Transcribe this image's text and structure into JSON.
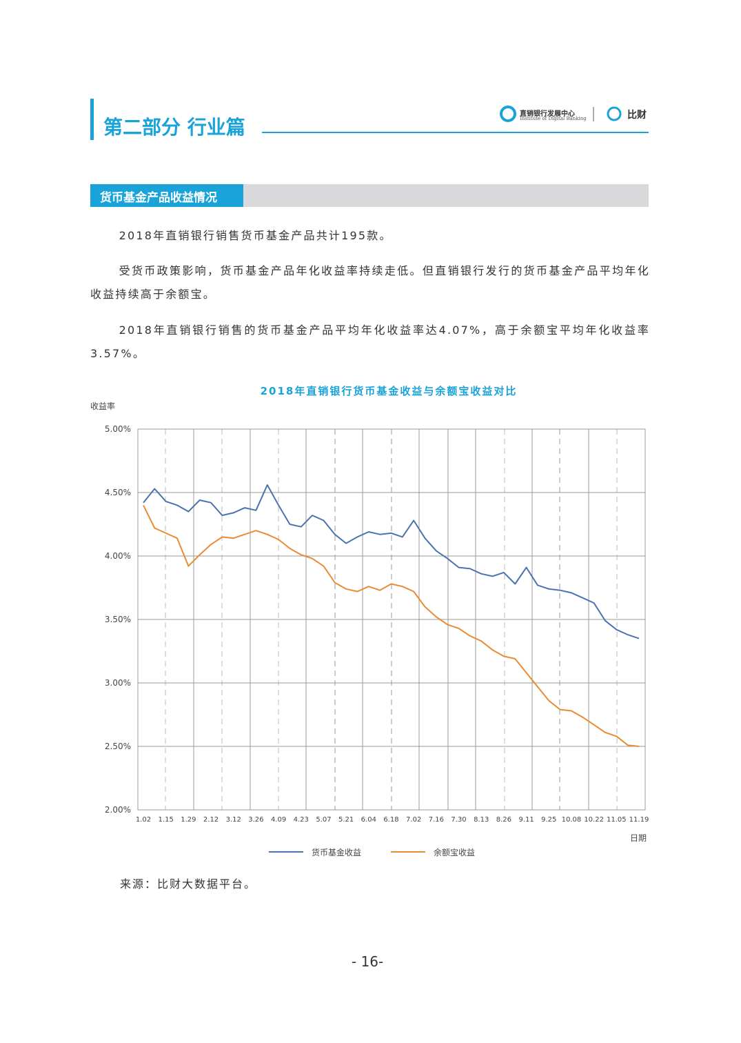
{
  "header": {
    "title": "第二部分 行业篇",
    "logo_cn": "直销银行发展中心",
    "logo_en": "Institute of Digital Banking",
    "logo2": "比财"
  },
  "section": {
    "title": "货币基金产品收益情况"
  },
  "paragraphs": [
    "2018年直销银行销售货币基金产品共计195款。",
    "受货币政策影响，货币基金产品年化收益率持续走低。但直销银行发行的货币基金产品平均年化收益持续高于余额宝。",
    "2018年直销银行销售的货币基金产品平均年化收益率达4.07%，高于余额宝平均年化收益率3.57%。"
  ],
  "chart_data": {
    "type": "line",
    "title": "2018年直销银行货币基金收益与余额宝收益对比",
    "y_label": "收益率",
    "x_label": "日期",
    "categories": [
      "1.02",
      null,
      "1.15",
      null,
      "1.29",
      null,
      "2.12",
      null,
      "3.12",
      null,
      "3.26",
      null,
      "4.09",
      null,
      "4.23",
      null,
      "5.07",
      null,
      "5.21",
      null,
      "6.04",
      null,
      "6.18",
      null,
      "7.02",
      null,
      "7.16",
      null,
      "7.30",
      null,
      "8.13",
      null,
      "8.26",
      null,
      "9.11",
      null,
      "9.25",
      null,
      "10.08",
      null,
      "10.22",
      null,
      "11.05",
      null,
      "11.19"
    ],
    "series": [
      {
        "name": "货币基金收益",
        "color": "#4a72b0",
        "values": [
          4.42,
          4.53,
          4.43,
          4.4,
          4.35,
          4.44,
          4.42,
          4.32,
          4.34,
          4.38,
          4.36,
          4.56,
          4.4,
          4.25,
          4.23,
          4.32,
          4.28,
          4.17,
          4.1,
          4.15,
          4.19,
          4.17,
          4.18,
          4.15,
          4.28,
          4.14,
          4.04,
          3.98,
          3.91,
          3.9,
          3.86,
          3.84,
          3.87,
          3.78,
          3.91,
          3.77,
          3.74,
          3.73,
          3.71,
          3.67,
          3.63,
          3.49,
          3.42,
          3.38,
          3.35
        ]
      },
      {
        "name": "余额宝收益",
        "color": "#e88b33",
        "values": [
          4.4,
          4.22,
          4.18,
          4.14,
          3.92,
          4.01,
          4.09,
          4.15,
          4.14,
          4.17,
          4.2,
          4.17,
          4.13,
          4.06,
          4.01,
          3.98,
          3.92,
          3.79,
          3.74,
          3.72,
          3.76,
          3.73,
          3.78,
          3.76,
          3.72,
          3.6,
          3.52,
          3.46,
          3.43,
          3.37,
          3.33,
          3.26,
          3.21,
          3.19,
          3.08,
          2.97,
          2.86,
          2.79,
          2.78,
          2.73,
          2.67,
          2.61,
          2.58,
          2.51,
          2.5
        ]
      }
    ],
    "ylim": [
      2,
      5
    ],
    "yticks": [
      {
        "value": 2,
        "label": "2.00%"
      },
      {
        "value": 2.5,
        "label": "2.50%"
      },
      {
        "value": 3,
        "label": "3.00%"
      },
      {
        "value": 3.5,
        "label": "3.50%"
      },
      {
        "value": 4,
        "label": "4.00%"
      },
      {
        "value": 4.5,
        "label": "4.50%"
      },
      {
        "value": 5,
        "label": "5.00%"
      }
    ],
    "grid": true
  },
  "source": "来源：比财大数据平台。",
  "page_number": "- 16-"
}
